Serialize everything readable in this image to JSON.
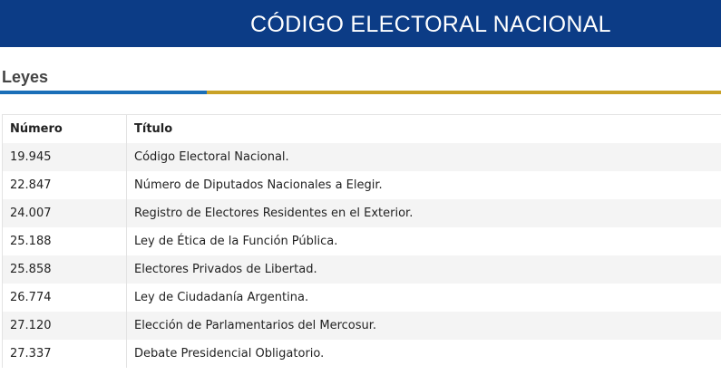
{
  "header": {
    "title": "CÓDIGO ELECTORAL NACIONAL"
  },
  "section": {
    "title": "Leyes"
  },
  "table": {
    "columns": [
      "Número",
      "Título"
    ],
    "rows": [
      [
        "19.945",
        "Código Electoral Nacional."
      ],
      [
        "22.847",
        "Número de Diputados Nacionales a Elegir."
      ],
      [
        "24.007",
        "Registro de Electores Residentes en el Exterior."
      ],
      [
        "25.188",
        "Ley de Ética de la Función Pública."
      ],
      [
        "25.858",
        "Electores Privados de Libertad."
      ],
      [
        "26.774",
        "Ley de Ciudadanía Argentina."
      ],
      [
        "27.120",
        "Elección de Parlamentarios del Mercosur."
      ],
      [
        "27.337",
        "Debate Presidencial Obligatorio."
      ]
    ]
  }
}
